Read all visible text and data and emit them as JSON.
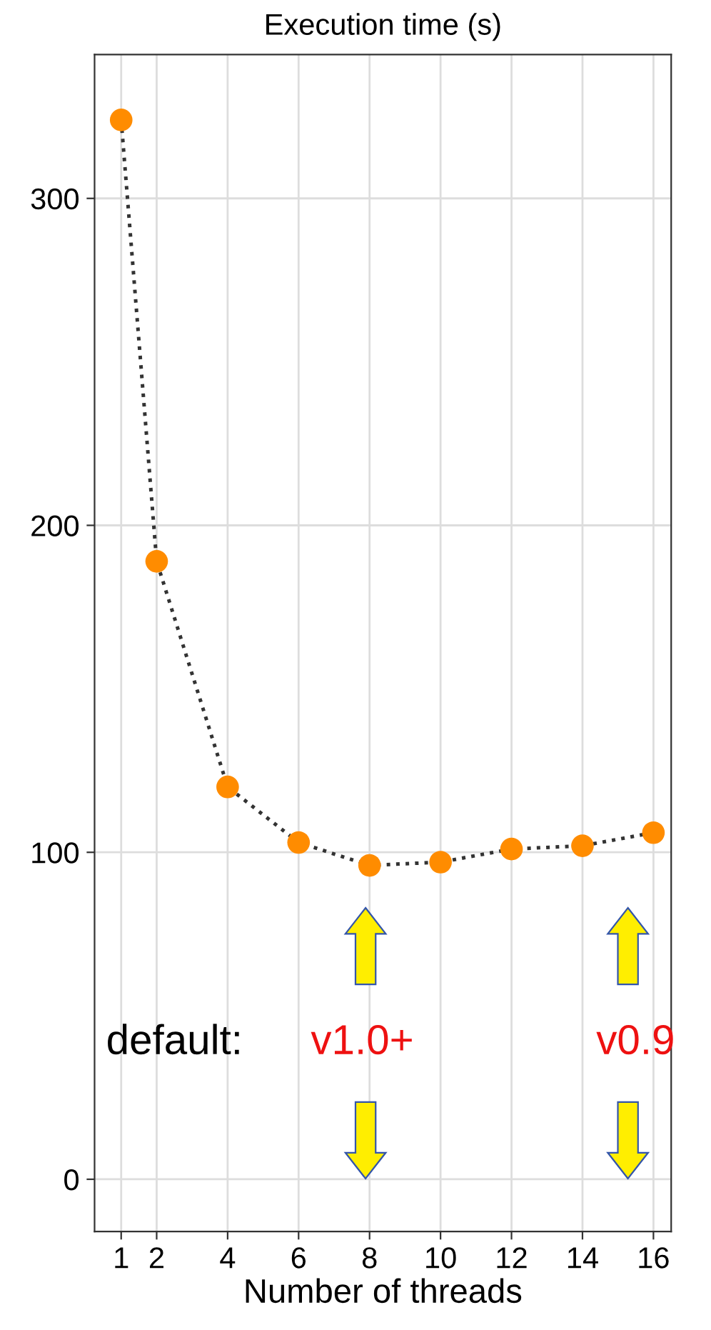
{
  "chart_data": {
    "type": "line",
    "title": "Execution time (s)",
    "xlabel": "Number of threads",
    "x": [
      1,
      2,
      4,
      6,
      8,
      10,
      12,
      14,
      16
    ],
    "series": [
      {
        "color": "#ff8c00",
        "values": [
          324,
          189,
          120,
          103,
          96,
          97,
          101,
          102,
          106
        ]
      }
    ],
    "xlim": [
      0.25,
      16.5
    ],
    "xticks": [
      1,
      2,
      4,
      6,
      8,
      10,
      12,
      14,
      16
    ],
    "ylim": [
      -16,
      344
    ],
    "yticks": [
      0,
      100,
      200,
      300
    ],
    "grid": true,
    "marker": "circle",
    "line_style": "dotted",
    "annotations": [
      "default:",
      "v1.0+",
      "v0.9"
    ]
  }
}
